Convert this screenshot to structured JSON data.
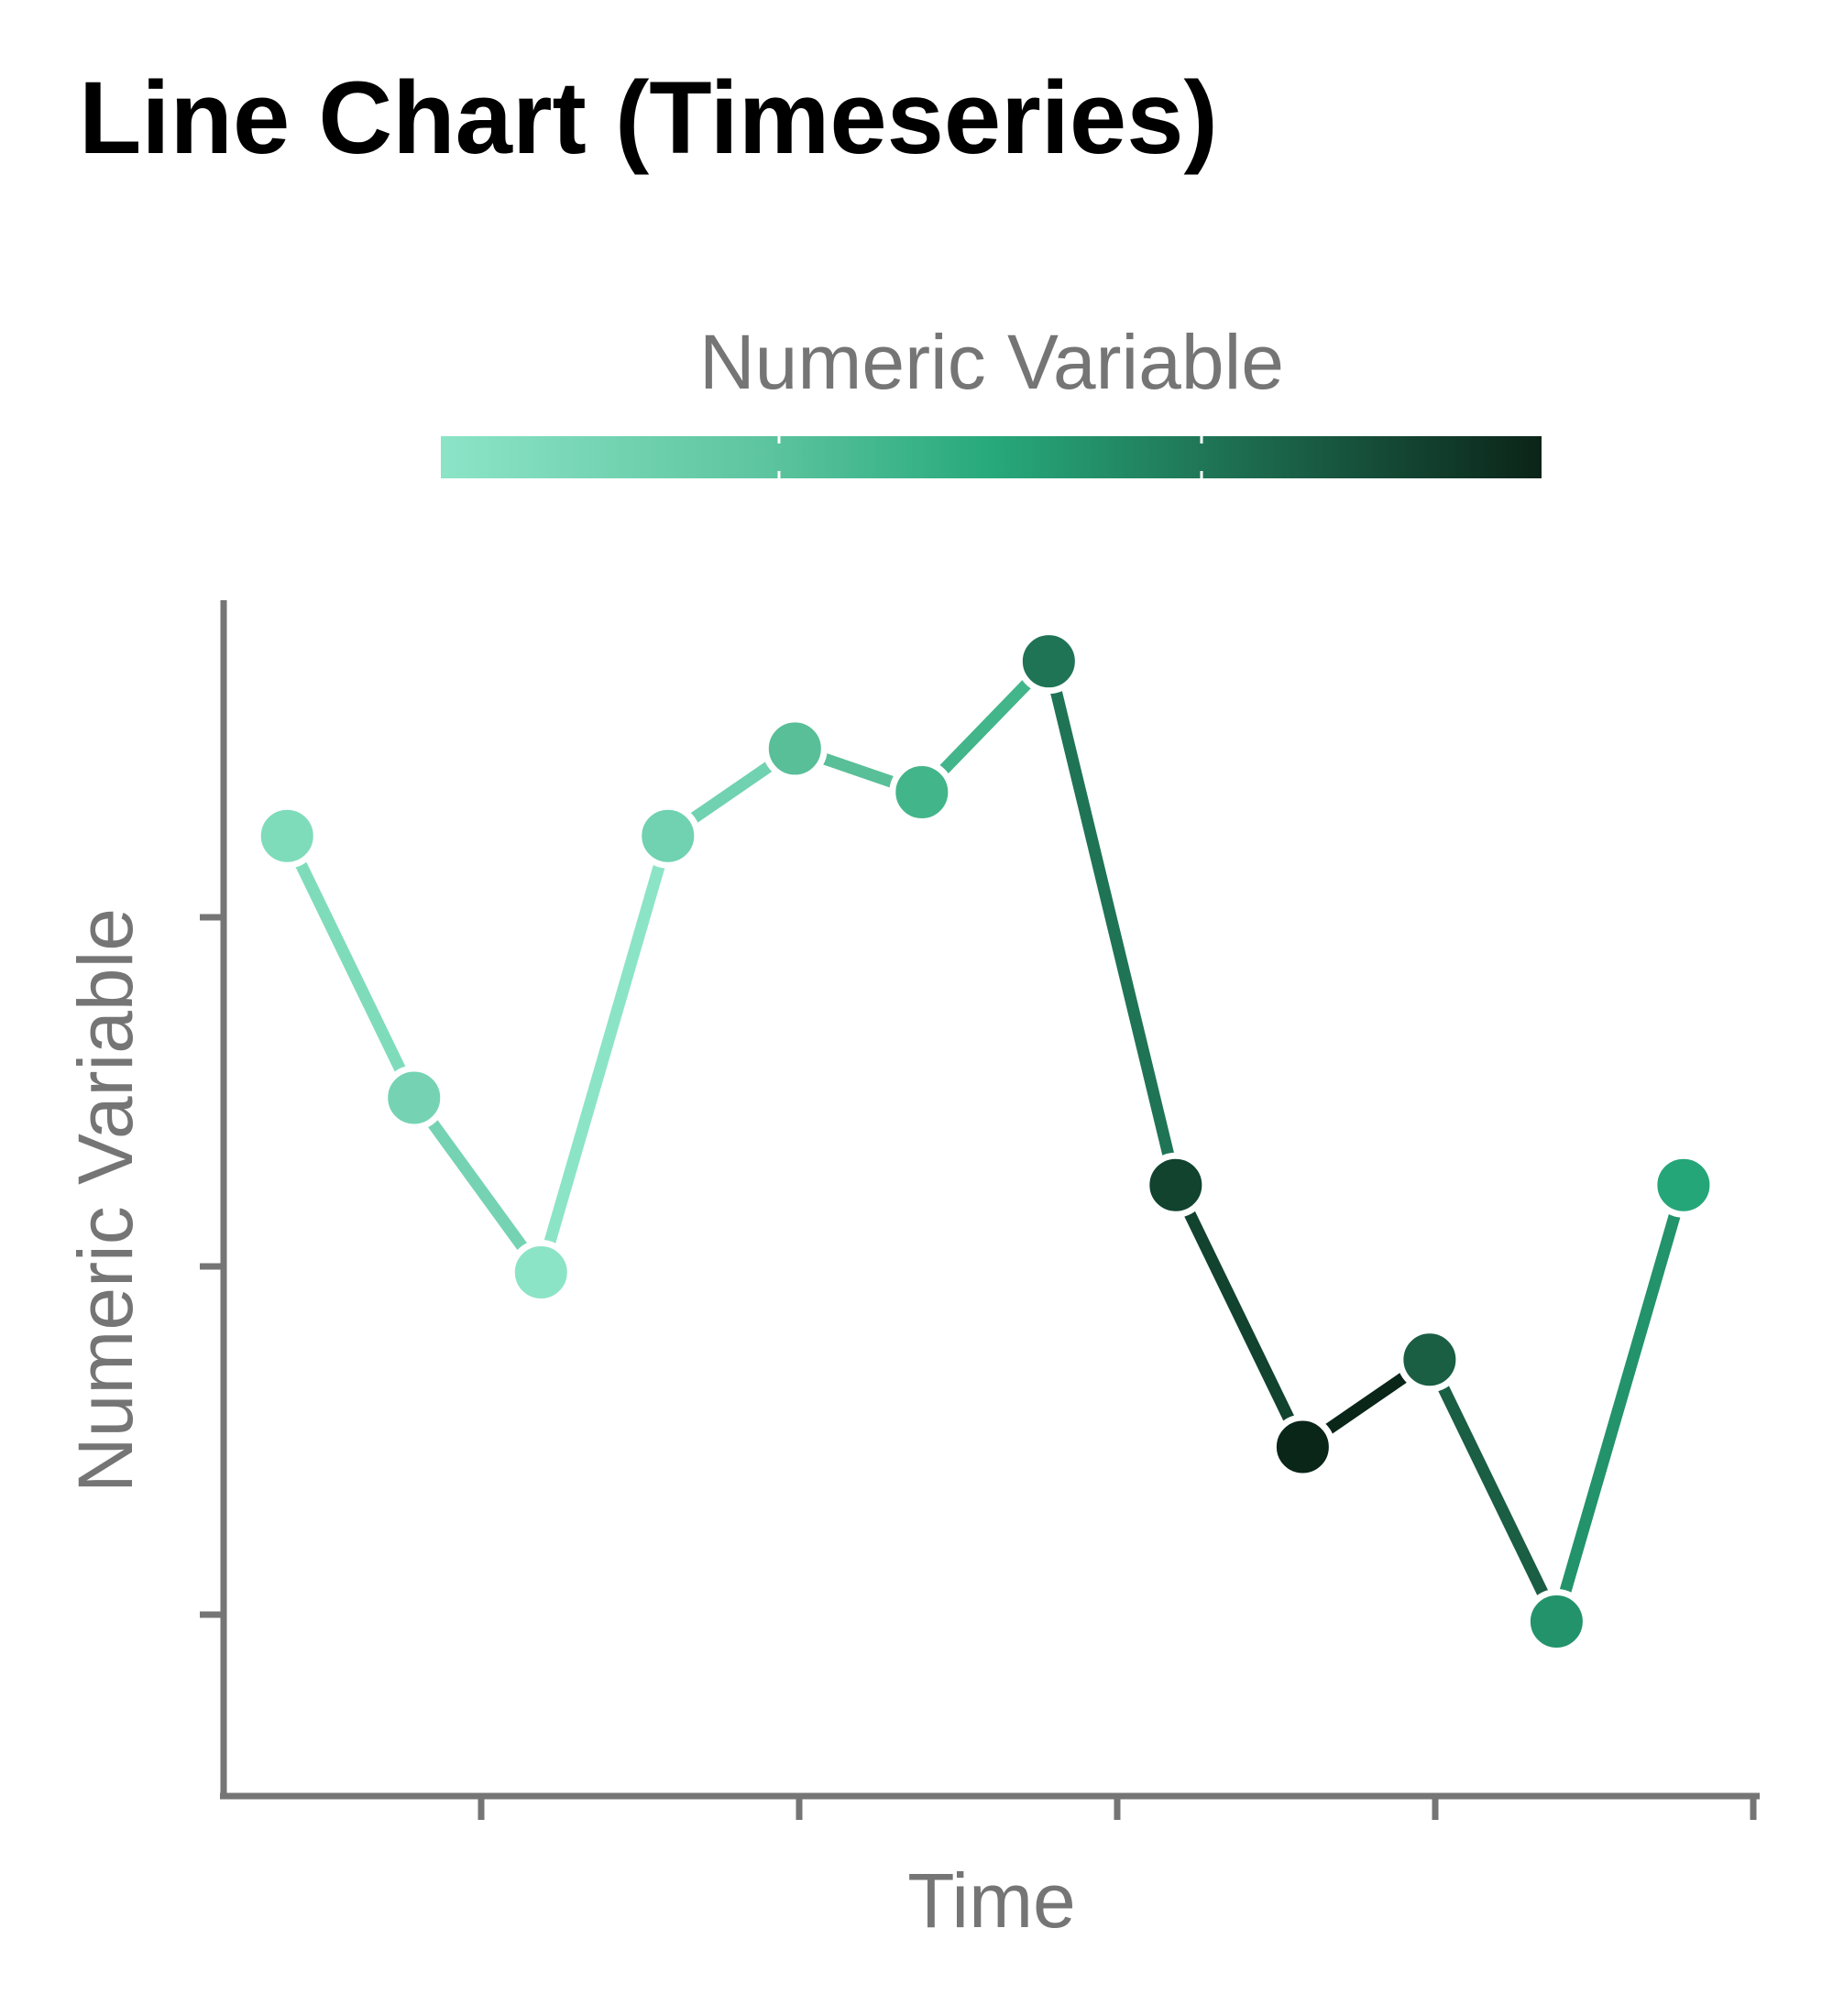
{
  "chart_data": {
    "type": "line",
    "title": "Line Chart (Timeseries)",
    "xlabel": "Time",
    "ylabel": "Numeric Variable",
    "legend": {
      "title": "Numeric Variable",
      "placement": "top",
      "kind": "colorbar"
    },
    "grid": false,
    "x": [
      1,
      2,
      3,
      4,
      5,
      6,
      7,
      8,
      9,
      10,
      11,
      12
    ],
    "values": [
      4,
      2.5,
      1.5,
      4,
      4.5,
      4.25,
      5,
      2,
      0.5,
      1,
      -0.5,
      2
    ],
    "colors": [
      "#7fdcbb",
      "#75d3b4",
      "#8ce4c7",
      "#70d2b0",
      "#59bf98",
      "#43b58a",
      "#1f7456",
      "#11432f",
      "#092618",
      "#1a5e44",
      "#22936b",
      "#25a679"
    ],
    "xlim": [
      0.5,
      12.6
    ],
    "ylim": [
      -1.5,
      5.35
    ],
    "palette": {
      "gradient": [
        "#8ce4c7",
        "#43b58a",
        "#27a97b",
        "#1f7456",
        "#0b2418"
      ],
      "point_stroke": "#ffffff",
      "axis": "#757575"
    }
  }
}
